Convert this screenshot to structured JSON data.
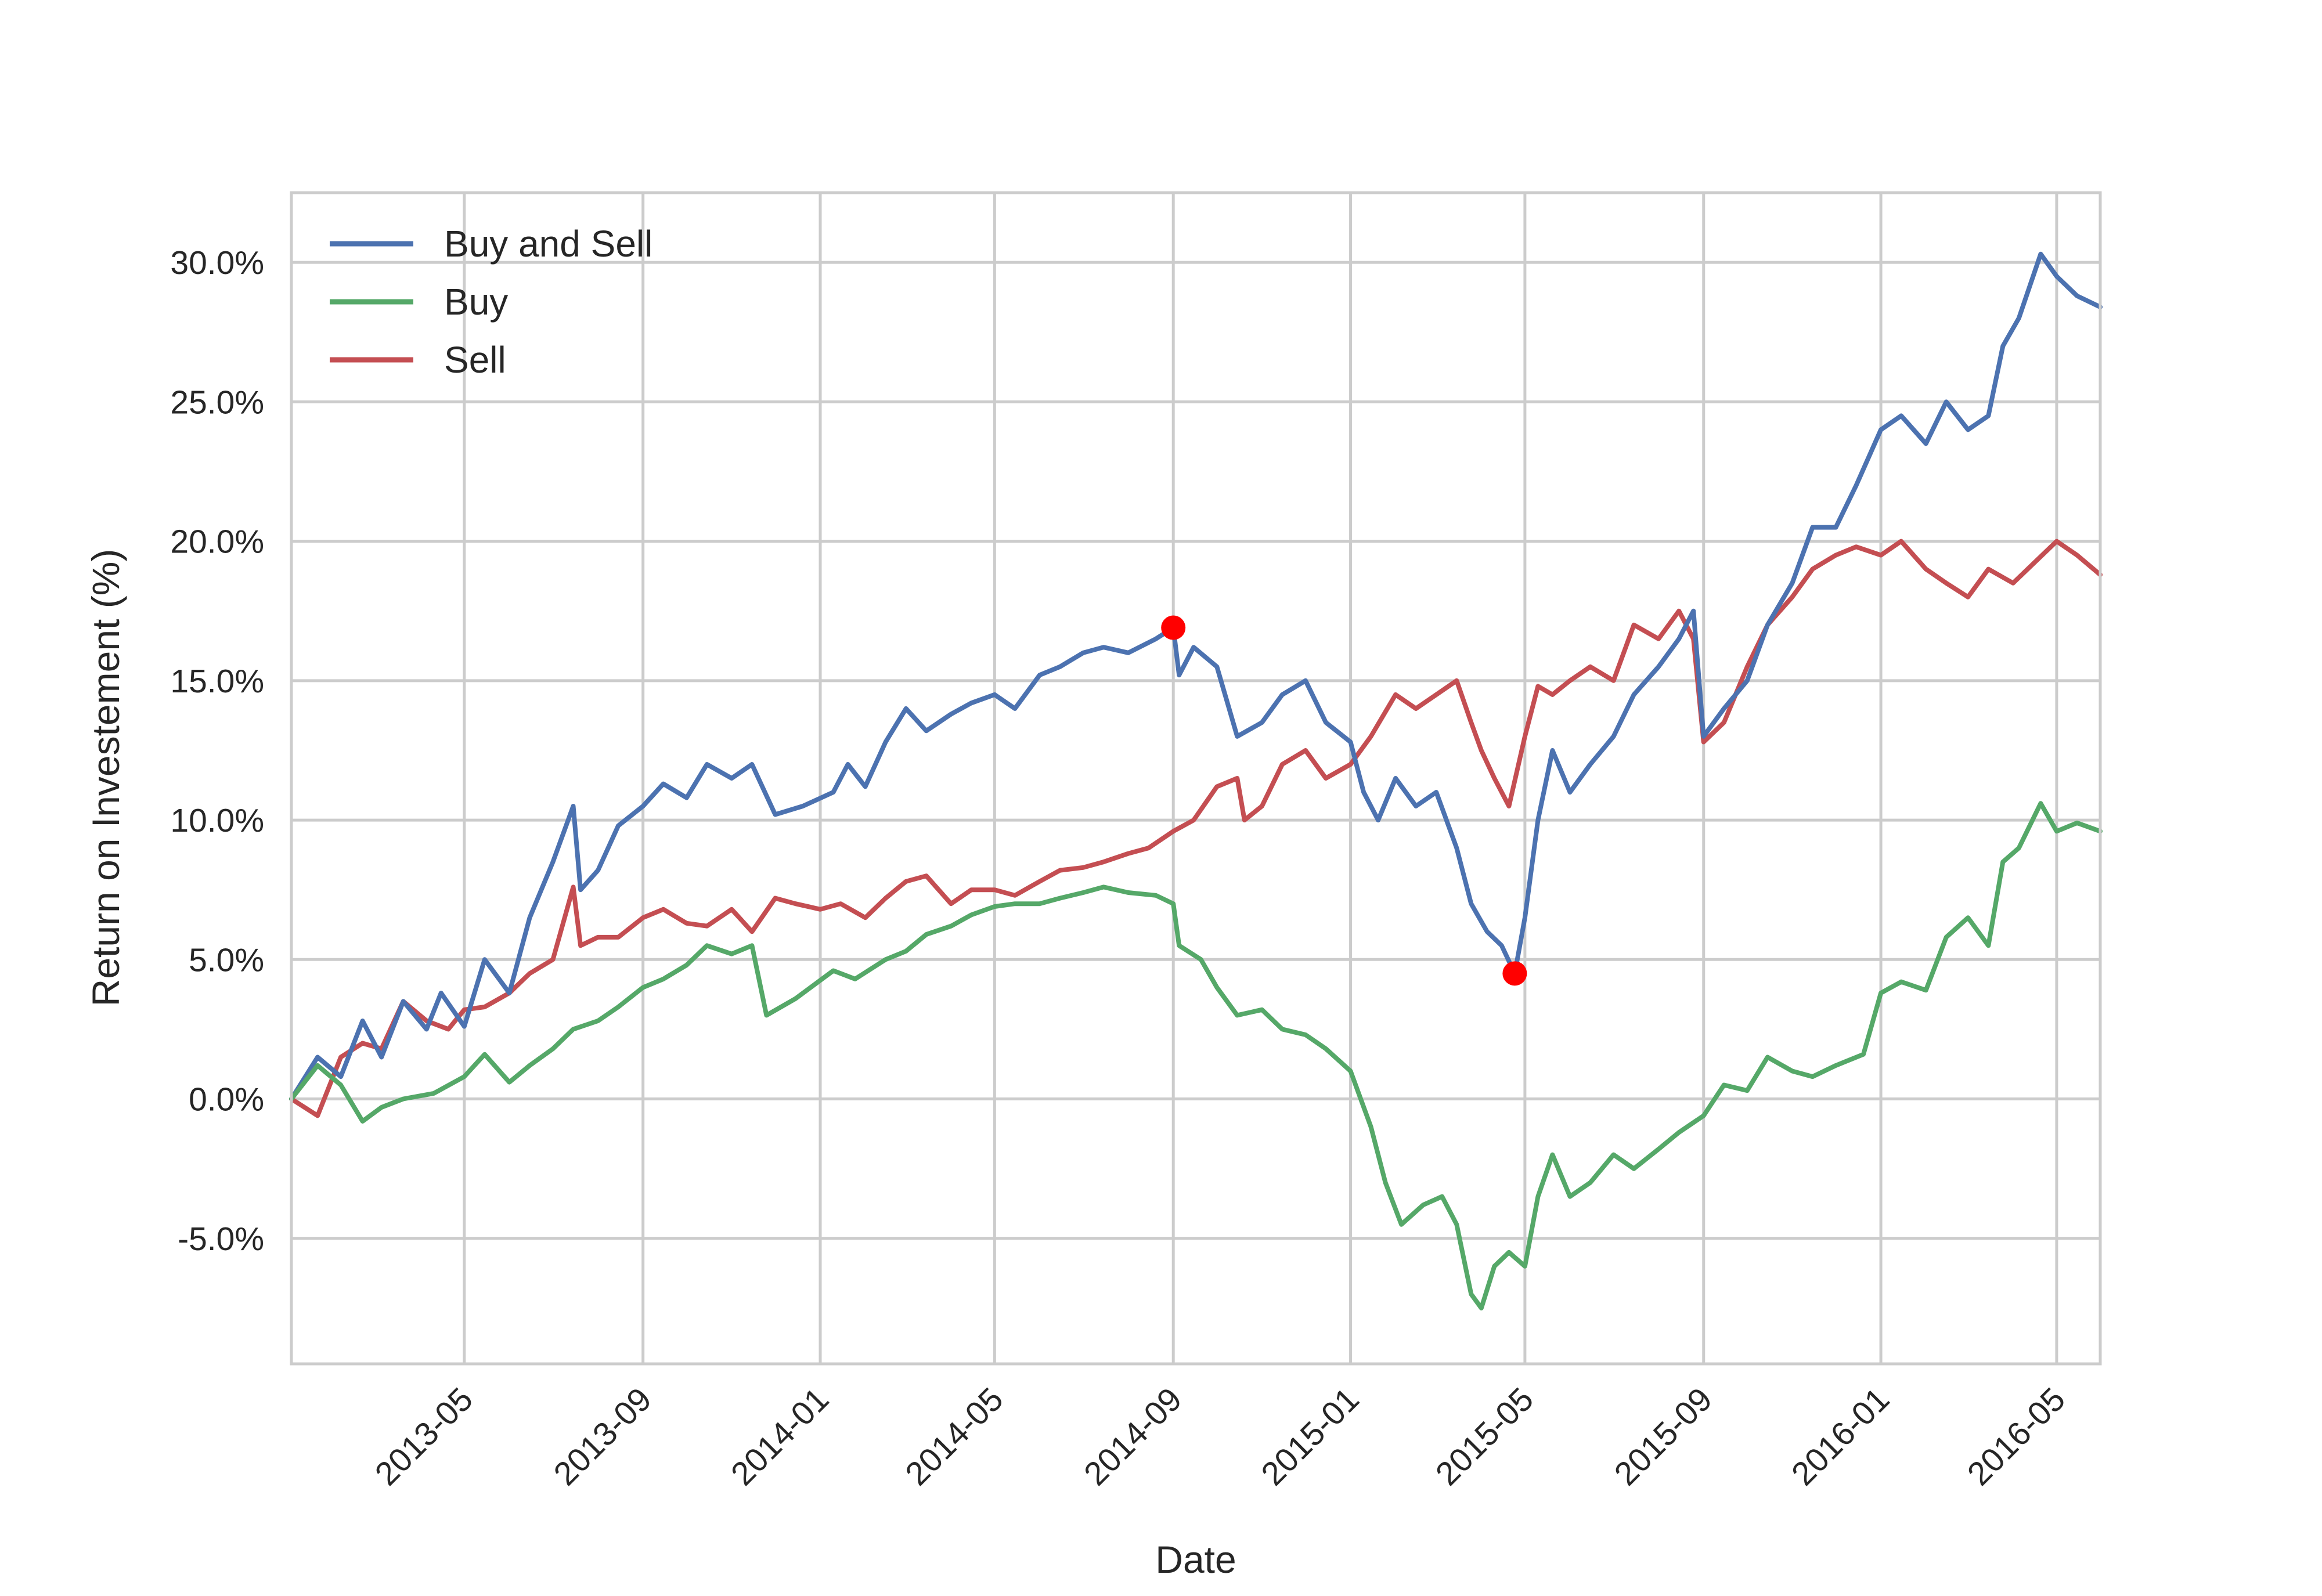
{
  "chart_data": {
    "type": "line",
    "title": "",
    "xlabel": "Date",
    "ylabel": "Return on Investement (%)",
    "x_ticks": [
      "2013-05",
      "2013-09",
      "2014-01",
      "2014-05",
      "2014-09",
      "2015-01",
      "2015-05",
      "2015-09",
      "2016-01",
      "2016-05"
    ],
    "y_ticks": [
      "-5.0%",
      "0.0%",
      "5.0%",
      "10.0%",
      "15.0%",
      "20.0%",
      "25.0%",
      "30.0%"
    ],
    "xlim": [
      "2013-01-02",
      "2016-05-31"
    ],
    "ylim": [
      -9.5,
      32.5
    ],
    "grid": true,
    "legend_position": "top-left",
    "series": [
      {
        "name": "Buy and Sell",
        "color": "#4c72b0",
        "points": [
          [
            "2013-01-02",
            0.0
          ],
          [
            "2013-01-20",
            1.5
          ],
          [
            "2013-02-05",
            0.8
          ],
          [
            "2013-02-20",
            2.8
          ],
          [
            "2013-03-05",
            1.5
          ],
          [
            "2013-03-20",
            3.5
          ],
          [
            "2013-04-05",
            2.5
          ],
          [
            "2013-04-15",
            3.8
          ],
          [
            "2013-05-01",
            2.6
          ],
          [
            "2013-05-15",
            5.0
          ],
          [
            "2013-06-01",
            3.8
          ],
          [
            "2013-06-15",
            6.5
          ],
          [
            "2013-07-01",
            8.5
          ],
          [
            "2013-07-15",
            10.5
          ],
          [
            "2013-07-20",
            7.5
          ],
          [
            "2013-08-01",
            8.2
          ],
          [
            "2013-08-15",
            9.8
          ],
          [
            "2013-09-01",
            10.5
          ],
          [
            "2013-09-15",
            11.3
          ],
          [
            "2013-10-01",
            10.8
          ],
          [
            "2013-10-15",
            12.0
          ],
          [
            "2013-11-01",
            11.5
          ],
          [
            "2013-11-15",
            12.0
          ],
          [
            "2013-12-01",
            10.2
          ],
          [
            "2013-12-20",
            10.5
          ],
          [
            "2014-01-10",
            11.0
          ],
          [
            "2014-01-20",
            12.0
          ],
          [
            "2014-02-01",
            11.2
          ],
          [
            "2014-02-15",
            12.8
          ],
          [
            "2014-03-01",
            14.0
          ],
          [
            "2014-03-15",
            13.2
          ],
          [
            "2014-04-01",
            13.8
          ],
          [
            "2014-04-15",
            14.2
          ],
          [
            "2014-05-01",
            14.5
          ],
          [
            "2014-05-15",
            14.0
          ],
          [
            "2014-06-01",
            15.2
          ],
          [
            "2014-06-15",
            15.5
          ],
          [
            "2014-07-01",
            16.0
          ],
          [
            "2014-07-15",
            16.2
          ],
          [
            "2014-08-01",
            16.0
          ],
          [
            "2014-08-20",
            16.5
          ],
          [
            "2014-09-01",
            16.9
          ],
          [
            "2014-09-05",
            15.2
          ],
          [
            "2014-09-15",
            16.2
          ],
          [
            "2014-10-01",
            15.5
          ],
          [
            "2014-10-15",
            13.0
          ],
          [
            "2014-11-01",
            13.5
          ],
          [
            "2014-11-15",
            14.5
          ],
          [
            "2014-12-01",
            15.0
          ],
          [
            "2014-12-15",
            13.5
          ],
          [
            "2015-01-01",
            12.8
          ],
          [
            "2015-01-10",
            11.0
          ],
          [
            "2015-01-20",
            10.0
          ],
          [
            "2015-02-01",
            11.5
          ],
          [
            "2015-02-15",
            10.5
          ],
          [
            "2015-03-01",
            11.0
          ],
          [
            "2015-03-15",
            9.0
          ],
          [
            "2015-03-25",
            7.0
          ],
          [
            "2015-04-05",
            6.0
          ],
          [
            "2015-04-15",
            5.5
          ],
          [
            "2015-04-24",
            4.5
          ],
          [
            "2015-05-01",
            6.5
          ],
          [
            "2015-05-10",
            10.0
          ],
          [
            "2015-05-20",
            12.5
          ],
          [
            "2015-06-01",
            11.0
          ],
          [
            "2015-06-15",
            12.0
          ],
          [
            "2015-07-01",
            13.0
          ],
          [
            "2015-07-15",
            14.5
          ],
          [
            "2015-08-01",
            15.5
          ],
          [
            "2015-08-15",
            16.5
          ],
          [
            "2015-08-25",
            17.5
          ],
          [
            "2015-09-01",
            13.0
          ],
          [
            "2015-09-15",
            14.0
          ],
          [
            "2015-10-01",
            15.0
          ],
          [
            "2015-10-15",
            17.0
          ],
          [
            "2015-11-01",
            18.5
          ],
          [
            "2015-11-15",
            20.5
          ],
          [
            "2015-12-01",
            20.5
          ],
          [
            "2015-12-15",
            22.0
          ],
          [
            "2016-01-01",
            24.0
          ],
          [
            "2016-01-15",
            24.5
          ],
          [
            "2016-02-01",
            23.5
          ],
          [
            "2016-02-15",
            25.0
          ],
          [
            "2016-03-01",
            24.0
          ],
          [
            "2016-03-15",
            24.5
          ],
          [
            "2016-03-25",
            27.0
          ],
          [
            "2016-04-05",
            28.0
          ],
          [
            "2016-04-20",
            30.3
          ],
          [
            "2016-05-01",
            29.5
          ],
          [
            "2016-05-15",
            28.8
          ],
          [
            "2016-05-31",
            28.4
          ]
        ]
      },
      {
        "name": "Buy",
        "color": "#55a868",
        "points": [
          [
            "2013-01-02",
            0.0
          ],
          [
            "2013-01-20",
            1.2
          ],
          [
            "2013-02-05",
            0.5
          ],
          [
            "2013-02-20",
            -0.8
          ],
          [
            "2013-03-05",
            -0.3
          ],
          [
            "2013-03-20",
            0.0
          ],
          [
            "2013-04-10",
            0.2
          ],
          [
            "2013-05-01",
            0.8
          ],
          [
            "2013-05-15",
            1.6
          ],
          [
            "2013-06-01",
            0.6
          ],
          [
            "2013-06-15",
            1.2
          ],
          [
            "2013-07-01",
            1.8
          ],
          [
            "2013-07-15",
            2.5
          ],
          [
            "2013-08-01",
            2.8
          ],
          [
            "2013-08-15",
            3.3
          ],
          [
            "2013-09-01",
            4.0
          ],
          [
            "2013-09-15",
            4.3
          ],
          [
            "2013-10-01",
            4.8
          ],
          [
            "2013-10-15",
            5.5
          ],
          [
            "2013-11-01",
            5.2
          ],
          [
            "2013-11-15",
            5.5
          ],
          [
            "2013-11-25",
            3.0
          ],
          [
            "2013-12-15",
            3.6
          ],
          [
            "2014-01-10",
            4.6
          ],
          [
            "2014-01-25",
            4.3
          ],
          [
            "2014-02-15",
            5.0
          ],
          [
            "2014-03-01",
            5.3
          ],
          [
            "2014-03-15",
            5.9
          ],
          [
            "2014-04-01",
            6.2
          ],
          [
            "2014-04-15",
            6.6
          ],
          [
            "2014-05-01",
            6.9
          ],
          [
            "2014-05-15",
            7.0
          ],
          [
            "2014-06-01",
            7.0
          ],
          [
            "2014-06-15",
            7.2
          ],
          [
            "2014-07-01",
            7.4
          ],
          [
            "2014-07-15",
            7.6
          ],
          [
            "2014-08-01",
            7.4
          ],
          [
            "2014-08-20",
            7.3
          ],
          [
            "2014-09-01",
            7.0
          ],
          [
            "2014-09-05",
            5.5
          ],
          [
            "2014-09-20",
            5.0
          ],
          [
            "2014-10-01",
            4.0
          ],
          [
            "2014-10-15",
            3.0
          ],
          [
            "2014-11-01",
            3.2
          ],
          [
            "2014-11-15",
            2.5
          ],
          [
            "2014-12-01",
            2.3
          ],
          [
            "2014-12-15",
            1.8
          ],
          [
            "2015-01-01",
            1.0
          ],
          [
            "2015-01-15",
            -1.0
          ],
          [
            "2015-01-25",
            -3.0
          ],
          [
            "2015-02-05",
            -4.5
          ],
          [
            "2015-02-20",
            -3.8
          ],
          [
            "2015-03-05",
            -3.5
          ],
          [
            "2015-03-15",
            -4.5
          ],
          [
            "2015-03-25",
            -7.0
          ],
          [
            "2015-04-01",
            -7.5
          ],
          [
            "2015-04-10",
            -6.0
          ],
          [
            "2015-04-20",
            -5.5
          ],
          [
            "2015-05-01",
            -6.0
          ],
          [
            "2015-05-10",
            -3.5
          ],
          [
            "2015-05-20",
            -2.0
          ],
          [
            "2015-06-01",
            -3.5
          ],
          [
            "2015-06-15",
            -3.0
          ],
          [
            "2015-07-01",
            -2.0
          ],
          [
            "2015-07-15",
            -2.5
          ],
          [
            "2015-08-01",
            -1.8
          ],
          [
            "2015-08-15",
            -1.2
          ],
          [
            "2015-09-01",
            -0.6
          ],
          [
            "2015-09-15",
            0.5
          ],
          [
            "2015-10-01",
            0.3
          ],
          [
            "2015-10-15",
            1.5
          ],
          [
            "2015-11-01",
            1.0
          ],
          [
            "2015-11-15",
            0.8
          ],
          [
            "2015-12-01",
            1.2
          ],
          [
            "2015-12-20",
            1.6
          ],
          [
            "2016-01-01",
            3.8
          ],
          [
            "2016-01-15",
            4.2
          ],
          [
            "2016-02-01",
            3.9
          ],
          [
            "2016-02-15",
            5.8
          ],
          [
            "2016-03-01",
            6.5
          ],
          [
            "2016-03-15",
            5.5
          ],
          [
            "2016-03-25",
            8.5
          ],
          [
            "2016-04-05",
            9.0
          ],
          [
            "2016-04-20",
            10.6
          ],
          [
            "2016-05-01",
            9.6
          ],
          [
            "2016-05-15",
            9.9
          ],
          [
            "2016-05-31",
            9.6
          ]
        ]
      },
      {
        "name": "Sell",
        "color": "#c44e52",
        "points": [
          [
            "2013-01-02",
            0.0
          ],
          [
            "2013-01-20",
            -0.6
          ],
          [
            "2013-02-05",
            1.5
          ],
          [
            "2013-02-20",
            2.0
          ],
          [
            "2013-03-05",
            1.8
          ],
          [
            "2013-03-20",
            3.5
          ],
          [
            "2013-04-05",
            2.8
          ],
          [
            "2013-04-20",
            2.5
          ],
          [
            "2013-05-01",
            3.2
          ],
          [
            "2013-05-15",
            3.3
          ],
          [
            "2013-06-01",
            3.8
          ],
          [
            "2013-06-15",
            4.5
          ],
          [
            "2013-07-01",
            5.0
          ],
          [
            "2013-07-15",
            7.6
          ],
          [
            "2013-07-20",
            5.5
          ],
          [
            "2013-08-01",
            5.8
          ],
          [
            "2013-08-15",
            5.8
          ],
          [
            "2013-09-01",
            6.5
          ],
          [
            "2013-09-15",
            6.8
          ],
          [
            "2013-10-01",
            6.3
          ],
          [
            "2013-10-15",
            6.2
          ],
          [
            "2013-11-01",
            6.8
          ],
          [
            "2013-11-15",
            6.0
          ],
          [
            "2013-12-01",
            7.2
          ],
          [
            "2013-12-15",
            7.0
          ],
          [
            "2014-01-01",
            6.8
          ],
          [
            "2014-01-15",
            7.0
          ],
          [
            "2014-02-01",
            6.5
          ],
          [
            "2014-02-15",
            7.2
          ],
          [
            "2014-03-01",
            7.8
          ],
          [
            "2014-03-15",
            8.0
          ],
          [
            "2014-04-01",
            7.0
          ],
          [
            "2014-04-15",
            7.5
          ],
          [
            "2014-05-01",
            7.5
          ],
          [
            "2014-05-15",
            7.3
          ],
          [
            "2014-06-01",
            7.8
          ],
          [
            "2014-06-15",
            8.2
          ],
          [
            "2014-07-01",
            8.3
          ],
          [
            "2014-07-15",
            8.5
          ],
          [
            "2014-08-01",
            8.8
          ],
          [
            "2014-08-15",
            9.0
          ],
          [
            "2014-09-01",
            9.6
          ],
          [
            "2014-09-15",
            10.0
          ],
          [
            "2014-10-01",
            11.2
          ],
          [
            "2014-10-15",
            11.5
          ],
          [
            "2014-10-20",
            10.0
          ],
          [
            "2014-11-01",
            10.5
          ],
          [
            "2014-11-15",
            12.0
          ],
          [
            "2014-12-01",
            12.5
          ],
          [
            "2014-12-15",
            11.5
          ],
          [
            "2015-01-01",
            12.0
          ],
          [
            "2015-01-15",
            13.0
          ],
          [
            "2015-02-01",
            14.5
          ],
          [
            "2015-02-15",
            14.0
          ],
          [
            "2015-03-01",
            14.5
          ],
          [
            "2015-03-15",
            15.0
          ],
          [
            "2015-03-25",
            13.5
          ],
          [
            "2015-04-01",
            12.5
          ],
          [
            "2015-04-10",
            11.5
          ],
          [
            "2015-04-20",
            10.5
          ],
          [
            "2015-05-01",
            13.0
          ],
          [
            "2015-05-10",
            14.8
          ],
          [
            "2015-05-20",
            14.5
          ],
          [
            "2015-06-01",
            15.0
          ],
          [
            "2015-06-15",
            15.5
          ],
          [
            "2015-07-01",
            15.0
          ],
          [
            "2015-07-15",
            17.0
          ],
          [
            "2015-08-01",
            16.5
          ],
          [
            "2015-08-15",
            17.5
          ],
          [
            "2015-08-25",
            16.5
          ],
          [
            "2015-09-01",
            12.8
          ],
          [
            "2015-09-15",
            13.5
          ],
          [
            "2015-10-01",
            15.5
          ],
          [
            "2015-10-15",
            17.0
          ],
          [
            "2015-11-01",
            18.0
          ],
          [
            "2015-11-15",
            19.0
          ],
          [
            "2015-12-01",
            19.5
          ],
          [
            "2015-12-15",
            19.8
          ],
          [
            "2016-01-01",
            19.5
          ],
          [
            "2016-01-15",
            20.0
          ],
          [
            "2016-02-01",
            19.0
          ],
          [
            "2016-02-15",
            18.5
          ],
          [
            "2016-03-01",
            18.0
          ],
          [
            "2016-03-15",
            19.0
          ],
          [
            "2016-04-01",
            18.5
          ],
          [
            "2016-04-15",
            19.2
          ],
          [
            "2016-05-01",
            20.0
          ],
          [
            "2016-05-15",
            19.5
          ],
          [
            "2016-05-31",
            18.8
          ]
        ]
      }
    ],
    "markers": [
      {
        "x": "2014-09-01",
        "y": 16.9,
        "color": "#ff0000"
      },
      {
        "x": "2015-04-24",
        "y": 4.5,
        "color": "#ff0000"
      }
    ]
  }
}
